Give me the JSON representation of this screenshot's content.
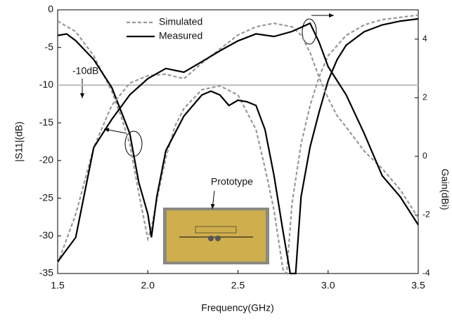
{
  "chart_data": {
    "type": "line",
    "xlabel": "Frequency(GHz)",
    "ylabel": "|S11|(dB)",
    "y2label": "Gain(dBi)",
    "xlim": [
      1.5,
      3.5
    ],
    "xticks": [
      1.5,
      {
        "value": 2,
        "label": "2.0"
      },
      2.5,
      {
        "value": 3,
        "label": "3.0"
      },
      3.5
    ],
    "ylim": [
      -35,
      0
    ],
    "yticks": [
      0,
      -5,
      -10,
      -15,
      -20,
      -25,
      -30,
      -35
    ],
    "y2lim": [
      -4,
      5
    ],
    "y2ticks": [
      4,
      2,
      0,
      -2,
      -4
    ],
    "legend": [
      {
        "name": "Simulated",
        "color": "#999999",
        "dashed": true
      },
      {
        "name": "Measured",
        "color": "#000000",
        "dashed": false
      }
    ],
    "hline": {
      "value": -10,
      "color": "#bbbbbb",
      "label": "-10dB"
    },
    "annotation": "Prototype",
    "series": [
      {
        "color": "#999999",
        "dashed": true,
        "axis": "y",
        "x": [
          1.5,
          1.6,
          1.7,
          1.8,
          1.85,
          1.9,
          1.95,
          2.0,
          2.02,
          2.05,
          2.1,
          2.15,
          2.2,
          2.3,
          2.4,
          2.5,
          2.6,
          2.65,
          2.7,
          2.75,
          2.77,
          2.8,
          2.85,
          2.9,
          2.95,
          3.0,
          3.1,
          3.2,
          3.3,
          3.5
        ],
        "values": [
          -1.5,
          -2.9,
          -6.1,
          -10.8,
          -14,
          -17.8,
          -24.3,
          -30.4,
          -29,
          -25.2,
          -19.6,
          -15.5,
          -13.1,
          -10.6,
          -10.1,
          -11.3,
          -15.9,
          -21,
          -26.6,
          -34.5,
          -35,
          -25.7,
          -17.8,
          -12.7,
          -8.9,
          -6.1,
          -3.4,
          -2,
          -1.3,
          -0.7
        ]
      },
      {
        "color": "#000000",
        "dashed": false,
        "axis": "y",
        "x": [
          1.5,
          1.55,
          1.6,
          1.7,
          1.8,
          1.9,
          1.95,
          2.0,
          2.02,
          2.05,
          2.1,
          2.2,
          2.3,
          2.35,
          2.4,
          2.45,
          2.5,
          2.55,
          2.6,
          2.65,
          2.7,
          2.75,
          2.79,
          2.82,
          2.85,
          2.9,
          2.95,
          3.0,
          3.05,
          3.1,
          3.2,
          3.3,
          3.4,
          3.5
        ],
        "values": [
          -3.4,
          -3.2,
          -4.1,
          -6.6,
          -10.3,
          -16.4,
          -22.9,
          -27.1,
          -30.2,
          -24.8,
          -18.7,
          -14.1,
          -11.3,
          -10.8,
          -11.3,
          -12.7,
          -12,
          -12.2,
          -12.7,
          -15.9,
          -22,
          -29.4,
          -35,
          -35,
          -24.8,
          -18.2,
          -13.6,
          -9.4,
          -6.6,
          -4.7,
          -2.9,
          -2,
          -1.5,
          -1.2
        ]
      },
      {
        "color": "#999999",
        "dashed": true,
        "axis": "y2",
        "x": [
          1.5,
          1.6,
          1.7,
          1.8,
          1.9,
          2.0,
          2.1,
          2.2,
          2.3,
          2.4,
          2.5,
          2.6,
          2.7,
          2.8,
          2.85,
          2.9,
          2.95,
          3.0,
          3.05,
          3.1,
          3.2,
          3.3,
          3.4,
          3.5
        ],
        "values": [
          -3.66,
          -1.98,
          0.3,
          1.74,
          2.5,
          2.75,
          2.8,
          2.65,
          3.18,
          3.66,
          4.14,
          4.42,
          4.54,
          4.42,
          4.14,
          3.54,
          2.7,
          1.98,
          1.38,
          1.0,
          0.18,
          -0.42,
          -1.14,
          -2.1
        ]
      },
      {
        "color": "#000000",
        "dashed": false,
        "axis": "y2",
        "x": [
          1.5,
          1.6,
          1.7,
          1.8,
          1.9,
          2.0,
          2.1,
          2.2,
          2.3,
          2.4,
          2.5,
          2.6,
          2.7,
          2.8,
          2.9,
          2.95,
          3.0,
          3.1,
          3.2,
          3.3,
          3.4,
          3.5
        ],
        "values": [
          -3.6,
          -2.77,
          0.3,
          1.26,
          2.1,
          2.65,
          3.0,
          2.87,
          3.23,
          3.6,
          3.94,
          4.18,
          4.09,
          4.26,
          4.54,
          3.9,
          3.06,
          2.1,
          0.78,
          -0.66,
          -1.38,
          -2.34
        ]
      }
    ]
  }
}
